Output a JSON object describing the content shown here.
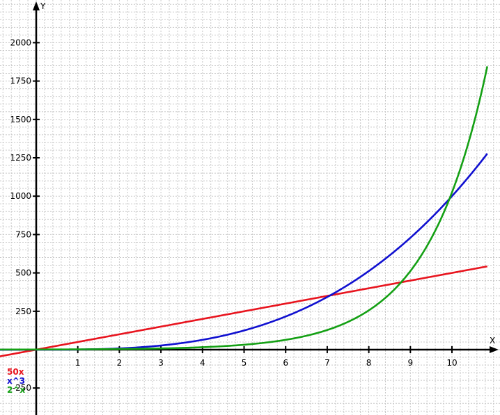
{
  "chart_data": {
    "type": "line",
    "xlabel": "X",
    "ylabel": "Y",
    "xlim": [
      -0.9,
      11
    ],
    "ylim": [
      -420,
      2330
    ],
    "grid": true,
    "x_ticks": [
      1,
      2,
      3,
      4,
      5,
      6,
      7,
      8,
      9,
      10
    ],
    "y_ticks": [
      -250,
      250,
      500,
      750,
      1000,
      1250,
      1500,
      1750,
      2000
    ],
    "legend_position": "bottom-left",
    "series": [
      {
        "name": "50x",
        "color": "#e8141e",
        "formula": "50*x",
        "x_range": [
          -0.9,
          10.85
        ]
      },
      {
        "name": "x^3",
        "color": "#1010d0",
        "formula": "x^3",
        "x_range": [
          -0.9,
          10.85
        ]
      },
      {
        "name": "2^x",
        "color": "#14a014",
        "formula": "2^x",
        "x_range": [
          -0.9,
          10.85
        ]
      }
    ]
  }
}
